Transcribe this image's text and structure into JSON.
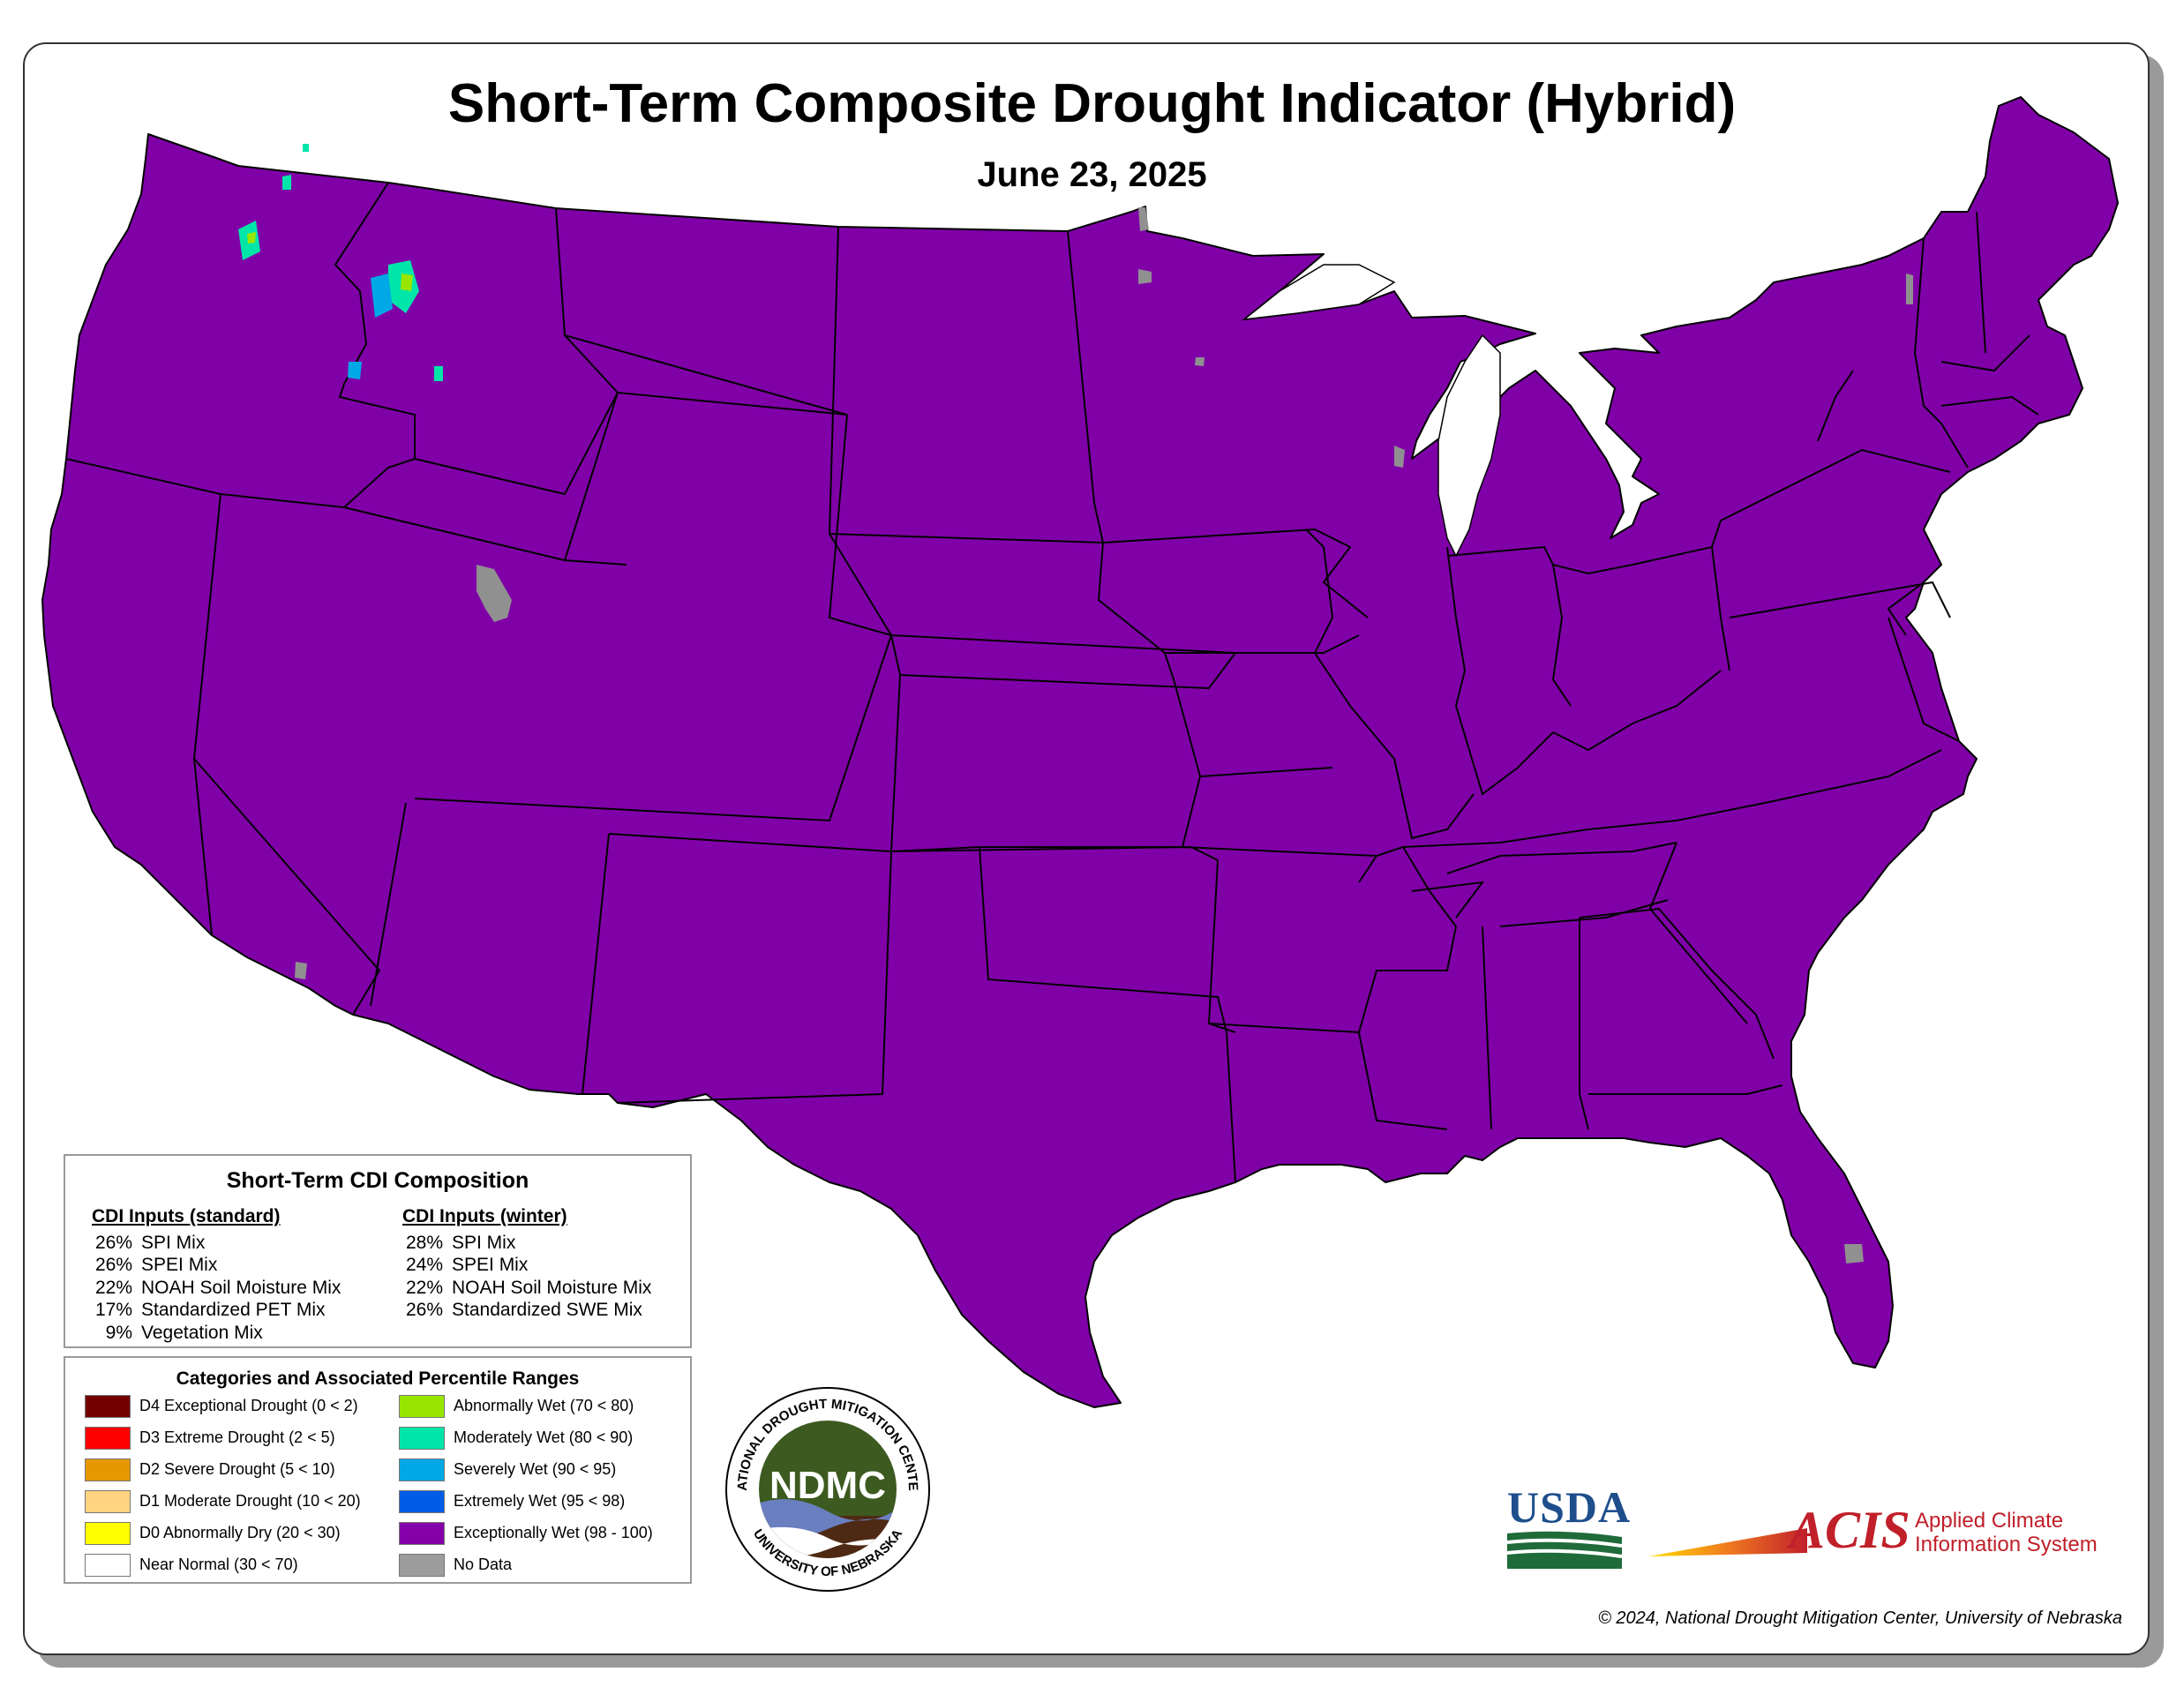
{
  "header": {
    "title": "Short-Term Composite Drought Indicator (Hybrid)",
    "date": "June 23, 2025"
  },
  "map": {
    "dominant_category": "Exceptionally Wet (98 - 100)",
    "fill_color": "#8000a8",
    "no_data_color": "#909090",
    "border_color": "#000000"
  },
  "composition": {
    "title": "Short-Term CDI Composition",
    "standard": {
      "heading": "CDI Inputs (standard)",
      "items": [
        {
          "pct": "26%",
          "label": "SPI Mix"
        },
        {
          "pct": "26%",
          "label": "SPEI Mix"
        },
        {
          "pct": "22%",
          "label": "NOAH Soil Moisture Mix"
        },
        {
          "pct": "17%",
          "label": "Standardized PET Mix"
        },
        {
          "pct": "9%",
          "label": "Vegetation Mix"
        }
      ]
    },
    "winter": {
      "heading": "CDI Inputs (winter)",
      "items": [
        {
          "pct": "28%",
          "label": "SPI Mix"
        },
        {
          "pct": "24%",
          "label": "SPEI Mix"
        },
        {
          "pct": "22%",
          "label": "NOAH Soil Moisture Mix"
        },
        {
          "pct": "26%",
          "label": "Standardized SWE Mix"
        }
      ]
    }
  },
  "legend": {
    "title": "Categories and Associated Percentile Ranges",
    "left": [
      {
        "label": "D4 Exceptional Drought (0 < 2)",
        "color": "#730000"
      },
      {
        "label": "D3 Extreme Drought (2 < 5)",
        "color": "#ff0000"
      },
      {
        "label": "D2 Severe Drought (5 < 10)",
        "color": "#e69800"
      },
      {
        "label": "D1 Moderate Drought (10 < 20)",
        "color": "#ffd37f"
      },
      {
        "label": "D0 Abnormally Dry (20 < 30)",
        "color": "#ffff00"
      },
      {
        "label": "Near Normal (30 < 70)",
        "color": "#ffffff"
      }
    ],
    "right": [
      {
        "label": "Abnormally Wet (70 < 80)",
        "color": "#98e600"
      },
      {
        "label": "Moderately Wet (80 < 90)",
        "color": "#00e6a9"
      },
      {
        "label": "Severely Wet (90 < 95)",
        "color": "#00a9e6"
      },
      {
        "label": "Extremely Wet (95 < 98)",
        "color": "#005ce6"
      },
      {
        "label": "Exceptionally Wet (98 - 100)",
        "color": "#8400a8"
      },
      {
        "label": "No Data",
        "color": "#9c9c9c"
      }
    ]
  },
  "logos": {
    "ndmc_ring_top": "NATIONAL DROUGHT MITIGATION CENTER",
    "ndmc_ring_bottom": "UNIVERSITY OF NEBRASKA",
    "ndmc_text": "NDMC",
    "usda_text": "USDA",
    "acis_text": "ACIS",
    "acis_line1": "Applied Climate",
    "acis_line2": "Information System"
  },
  "footer": {
    "copyright": "© 2024, National Drought Mitigation Center, University of Nebraska"
  }
}
